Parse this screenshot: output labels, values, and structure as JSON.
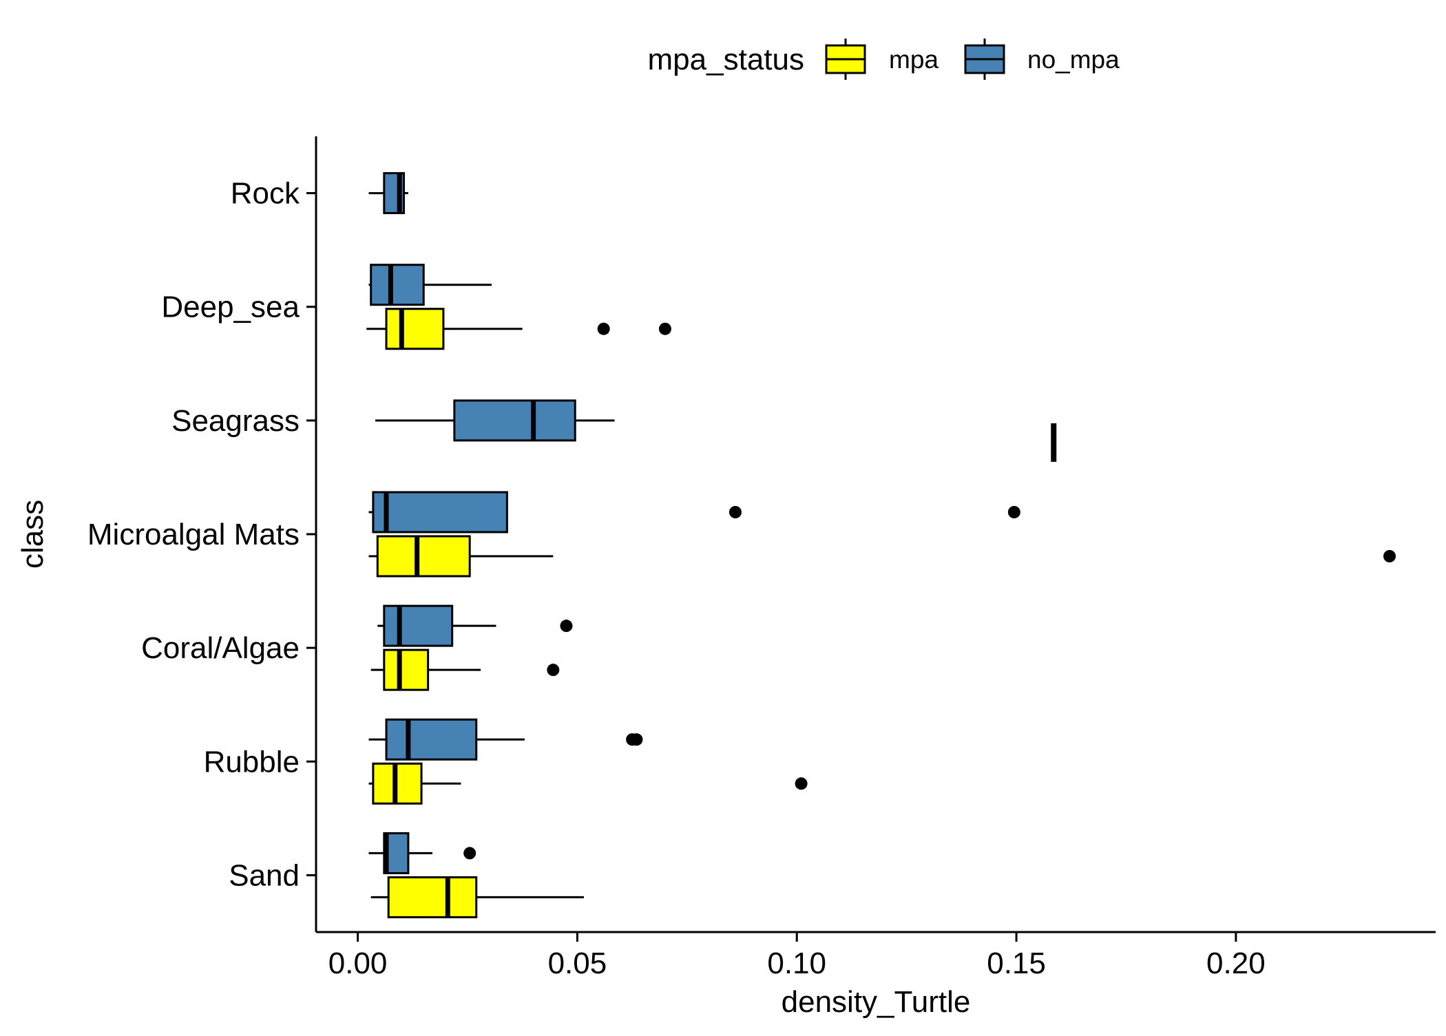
{
  "chart_data": {
    "type": "boxplot",
    "orientation": "horizontal",
    "xlabel": "density_Turtle",
    "ylabel": "class",
    "xlim": [
      -0.0095,
      0.2455
    ],
    "x_ticks": [
      {
        "value": 0.0,
        "label": "0.00"
      },
      {
        "value": 0.05,
        "label": "0.05"
      },
      {
        "value": 0.1,
        "label": "0.10"
      },
      {
        "value": 0.15,
        "label": "0.15"
      },
      {
        "value": 0.2,
        "label": "0.20"
      }
    ],
    "categories": [
      "Rock",
      "Deep_sea",
      "Seagrass",
      "Microalgal Mats",
      "Coral/Algae",
      "Rubble",
      "Sand"
    ],
    "legend": {
      "title": "mpa_status",
      "position": "top",
      "items": [
        {
          "label": "mpa",
          "color": "#FFFF00"
        },
        {
          "label": "no_mpa",
          "color": "#4682B4"
        }
      ]
    },
    "grid": false,
    "series": [
      {
        "name": "mpa",
        "color": "#FFFF00",
        "boxes": [
          {
            "category": "Deep_sea",
            "whisker_low": 0.002,
            "q1": 0.0065,
            "median": 0.01,
            "q3": 0.0195,
            "whisker_high": 0.0375,
            "outliers": [
              0.056,
              0.07
            ]
          },
          {
            "category": "Microalgal Mats",
            "whisker_low": 0.0025,
            "q1": 0.0045,
            "median": 0.0135,
            "q3": 0.0255,
            "whisker_high": 0.0445,
            "outliers": [
              0.235
            ]
          },
          {
            "category": "Coral/Algae",
            "whisker_low": 0.003,
            "q1": 0.006,
            "median": 0.0095,
            "q3": 0.016,
            "whisker_high": 0.028,
            "outliers": [
              0.0445
            ]
          },
          {
            "category": "Rubble",
            "whisker_low": 0.0025,
            "q1": 0.0035,
            "median": 0.0085,
            "q3": 0.0145,
            "whisker_high": 0.0235,
            "outliers": [
              0.101
            ]
          },
          {
            "category": "Sand",
            "whisker_low": 0.003,
            "q1": 0.007,
            "median": 0.0205,
            "q3": 0.027,
            "whisker_high": 0.0515,
            "outliers": []
          }
        ]
      },
      {
        "name": "no_mpa",
        "color": "#4682B4",
        "boxes": [
          {
            "category": "Rock",
            "whisker_low": 0.0025,
            "q1": 0.006,
            "median": 0.0095,
            "q3": 0.0105,
            "whisker_high": 0.0115,
            "outliers": []
          },
          {
            "category": "Deep_sea",
            "whisker_low": 0.0025,
            "q1": 0.003,
            "median": 0.0075,
            "q3": 0.015,
            "whisker_high": 0.0305,
            "outliers": []
          },
          {
            "category": "Seagrass",
            "whisker_low": 0.004,
            "q1": 0.022,
            "median": 0.04,
            "q3": 0.0495,
            "whisker_high": 0.0585,
            "outliers": []
          },
          {
            "category": "Microalgal Mats",
            "whisker_low": 0.0025,
            "q1": 0.0035,
            "median": 0.0065,
            "q3": 0.034,
            "whisker_high": 0.034,
            "outliers": [
              0.086,
              0.1495
            ]
          },
          {
            "category": "Coral/Algae",
            "whisker_low": 0.0045,
            "q1": 0.006,
            "median": 0.0095,
            "q3": 0.0215,
            "whisker_high": 0.0315,
            "outliers": [
              0.0475
            ]
          },
          {
            "category": "Rubble",
            "whisker_low": 0.0025,
            "q1": 0.0065,
            "median": 0.0115,
            "q3": 0.027,
            "whisker_high": 0.038,
            "outliers": [
              0.0625,
              0.0635
            ]
          },
          {
            "category": "Sand",
            "whisker_low": 0.0025,
            "q1": 0.006,
            "median": 0.0065,
            "q3": 0.0115,
            "whisker_high": 0.017,
            "outliers": [
              0.0255
            ]
          }
        ]
      }
    ],
    "annotations": [
      {
        "category": "Seagrass",
        "value": 0.1585,
        "shape": "vertical-bar"
      }
    ]
  }
}
